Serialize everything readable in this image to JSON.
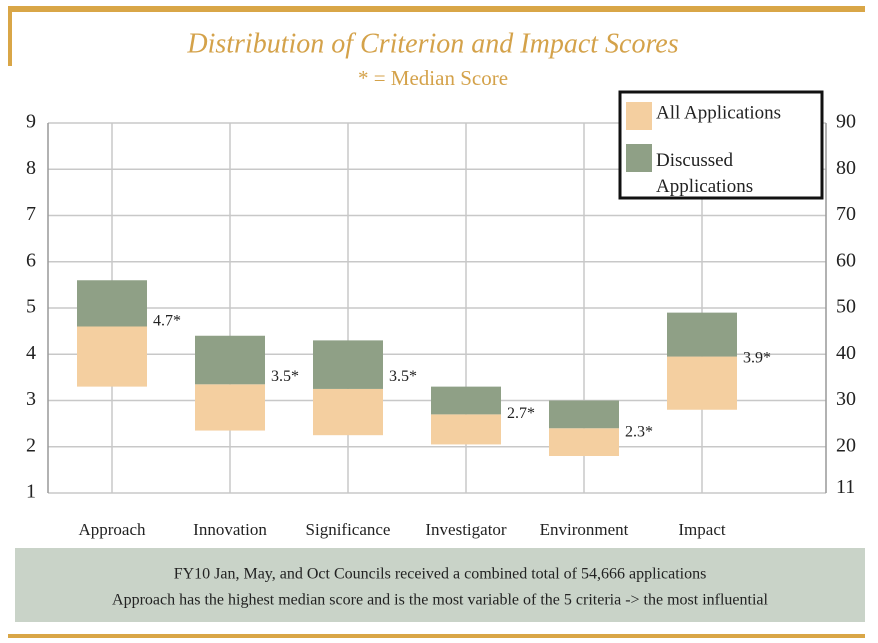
{
  "chart_data": {
    "type": "floating_bar",
    "title": "Distribution of Criterion and Impact Scores",
    "subtitle": "* = Median Score",
    "categories": [
      "Approach",
      "Innovation",
      "Significance",
      "Investigator",
      "Environment",
      "Impact"
    ],
    "series": [
      {
        "name": "All Applications",
        "color": "#f4cfa0",
        "low": [
          3.3,
          2.35,
          2.25,
          2.05,
          1.8,
          2.8
        ],
        "high": [
          4.6,
          3.35,
          3.25,
          2.7,
          2.4,
          3.95
        ]
      },
      {
        "name": "Discussed Applications",
        "color": "#8fa086",
        "low": [
          4.6,
          3.35,
          3.25,
          2.7,
          2.4,
          3.95
        ],
        "high": [
          5.6,
          4.4,
          4.3,
          3.3,
          3.0,
          4.9
        ]
      }
    ],
    "medians": [
      4.7,
      3.5,
      3.5,
      2.7,
      2.3,
      3.9
    ],
    "median_labels": [
      "4.7*",
      "3.5*",
      "3.5*",
      "2.7*",
      "2.3*",
      "3.9*"
    ],
    "ylim": [
      1,
      9
    ],
    "yticks": [
      1,
      2,
      3,
      4,
      5,
      6,
      7,
      8,
      9
    ],
    "y2lim": [
      10,
      90
    ],
    "y2ticks": [
      11,
      20,
      30,
      40,
      50,
      60,
      70,
      80,
      90
    ],
    "grid": true,
    "legend": "upper right",
    "footnotes": [
      "FY10 Jan, May, and Oct Councils received a combined total of 54,666 applications",
      "Approach has the highest median score and is the most variable of the 5 criteria -> the most influential"
    ]
  }
}
